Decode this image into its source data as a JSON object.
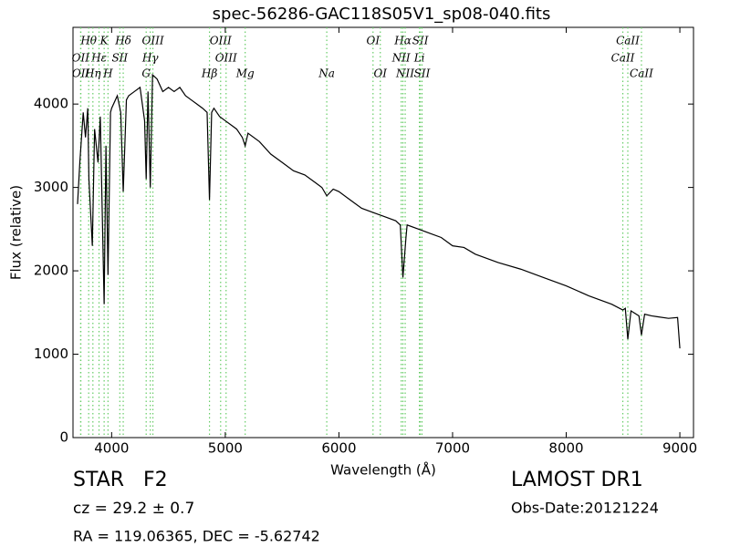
{
  "chart_data": {
    "type": "line",
    "title": "spec-56286-GAC118S05V1_sp08-040.fits",
    "x_label": "Wavelength (Å)",
    "y_label": "Flux (relative)",
    "xlim": [
      3660,
      9120
    ],
    "ylim": [
      0,
      4920
    ],
    "xticks": [
      4000,
      5000,
      6000,
      7000,
      8000,
      9000
    ],
    "yticks": [
      0,
      1000,
      2000,
      3000,
      4000
    ],
    "color": "#000000",
    "line_color": "#66cc66",
    "x": [
      3700,
      3720,
      3750,
      3770,
      3790,
      3800,
      3830,
      3850,
      3880,
      3900,
      3934,
      3950,
      3968,
      3990,
      4000,
      4050,
      4080,
      4102,
      4130,
      4150,
      4200,
      4250,
      4290,
      4304,
      4320,
      4340,
      4360,
      4400,
      4450,
      4500,
      4550,
      4600,
      4650,
      4700,
      4750,
      4800,
      4840,
      4861,
      4880,
      4900,
      4950,
      5000,
      5050,
      5100,
      5150,
      5175,
      5200,
      5300,
      5400,
      5500,
      5600,
      5700,
      5800,
      5850,
      5893,
      5950,
      6000,
      6100,
      6200,
      6300,
      6400,
      6500,
      6540,
      6563,
      6590,
      6600,
      6700,
      6800,
      6900,
      7000,
      7100,
      7200,
      7400,
      7600,
      7800,
      8000,
      8200,
      8400,
      8498,
      8520,
      8542,
      8570,
      8640,
      8662,
      8690,
      8750,
      8800,
      8900,
      8980,
      9000
    ],
    "values": [
      2800,
      3300,
      3900,
      3600,
      3950,
      3100,
      2300,
      3700,
      3300,
      3850,
      1600,
      3500,
      1950,
      3900,
      3950,
      4100,
      3900,
      2950,
      4050,
      4100,
      4150,
      4200,
      3800,
      3100,
      4150,
      3000,
      4350,
      4300,
      4150,
      4200,
      4150,
      4200,
      4100,
      4050,
      4000,
      3950,
      3900,
      2850,
      3900,
      3950,
      3850,
      3800,
      3750,
      3700,
      3600,
      3500,
      3650,
      3550,
      3400,
      3300,
      3200,
      3150,
      3050,
      3000,
      2900,
      2980,
      2950,
      2850,
      2750,
      2700,
      2650,
      2600,
      2550,
      1920,
      2400,
      2550,
      2500,
      2450,
      2400,
      2300,
      2280,
      2200,
      2100,
      2020,
      1920,
      1820,
      1700,
      1600,
      1530,
      1550,
      1180,
      1520,
      1460,
      1230,
      1480,
      1460,
      1450,
      1430,
      1440,
      1070
    ],
    "spectral_lines": [
      [
        {
          "label": "Hθ",
          "x": 3798
        },
        {
          "label": "K",
          "x": 3934
        },
        {
          "label": "Hδ",
          "x": 4102
        },
        {
          "label": "OIII",
          "x": 4363
        },
        {
          "label": "OIII",
          "x": 4959
        },
        {
          "label": "OI",
          "x": 6300
        },
        {
          "label": "Hα",
          "x": 6563
        },
        {
          "label": "SII",
          "x": 6716
        },
        {
          "label": "CaII",
          "x": 8542
        }
      ],
      [
        {
          "label": "OII",
          "x": 3727
        },
        {
          "label": "Hε",
          "x": 3889
        },
        {
          "label": "SII",
          "x": 4072
        },
        {
          "label": "Hγ",
          "x": 4340
        },
        {
          "label": "OIII",
          "x": 5007
        },
        {
          "label": "NII",
          "x": 6548
        },
        {
          "label": "Li",
          "x": 6708
        },
        {
          "label": "CaII",
          "x": 8498
        }
      ],
      [
        {
          "label": "OII",
          "x": 3729
        },
        {
          "label": "Hη",
          "x": 3835
        },
        {
          "label": "H",
          "x": 3968
        },
        {
          "label": "G",
          "x": 4304
        },
        {
          "label": "Hβ",
          "x": 4861
        },
        {
          "label": "Mg",
          "x": 5175
        },
        {
          "label": "Na",
          "x": 5893
        },
        {
          "label": "OI",
          "x": 6364
        },
        {
          "label": "NII",
          "x": 6583
        },
        {
          "label": "SII",
          "x": 6731
        },
        {
          "label": "CaII",
          "x": 8662
        }
      ]
    ]
  },
  "footer": {
    "object": "STAR   F2",
    "survey": "LAMOST DR1",
    "redshift": "cz = 29.2 ± 0.7",
    "obs_date": "Obs-Date:20121224",
    "position": "RA = 119.06365, DEC = -5.62742"
  }
}
